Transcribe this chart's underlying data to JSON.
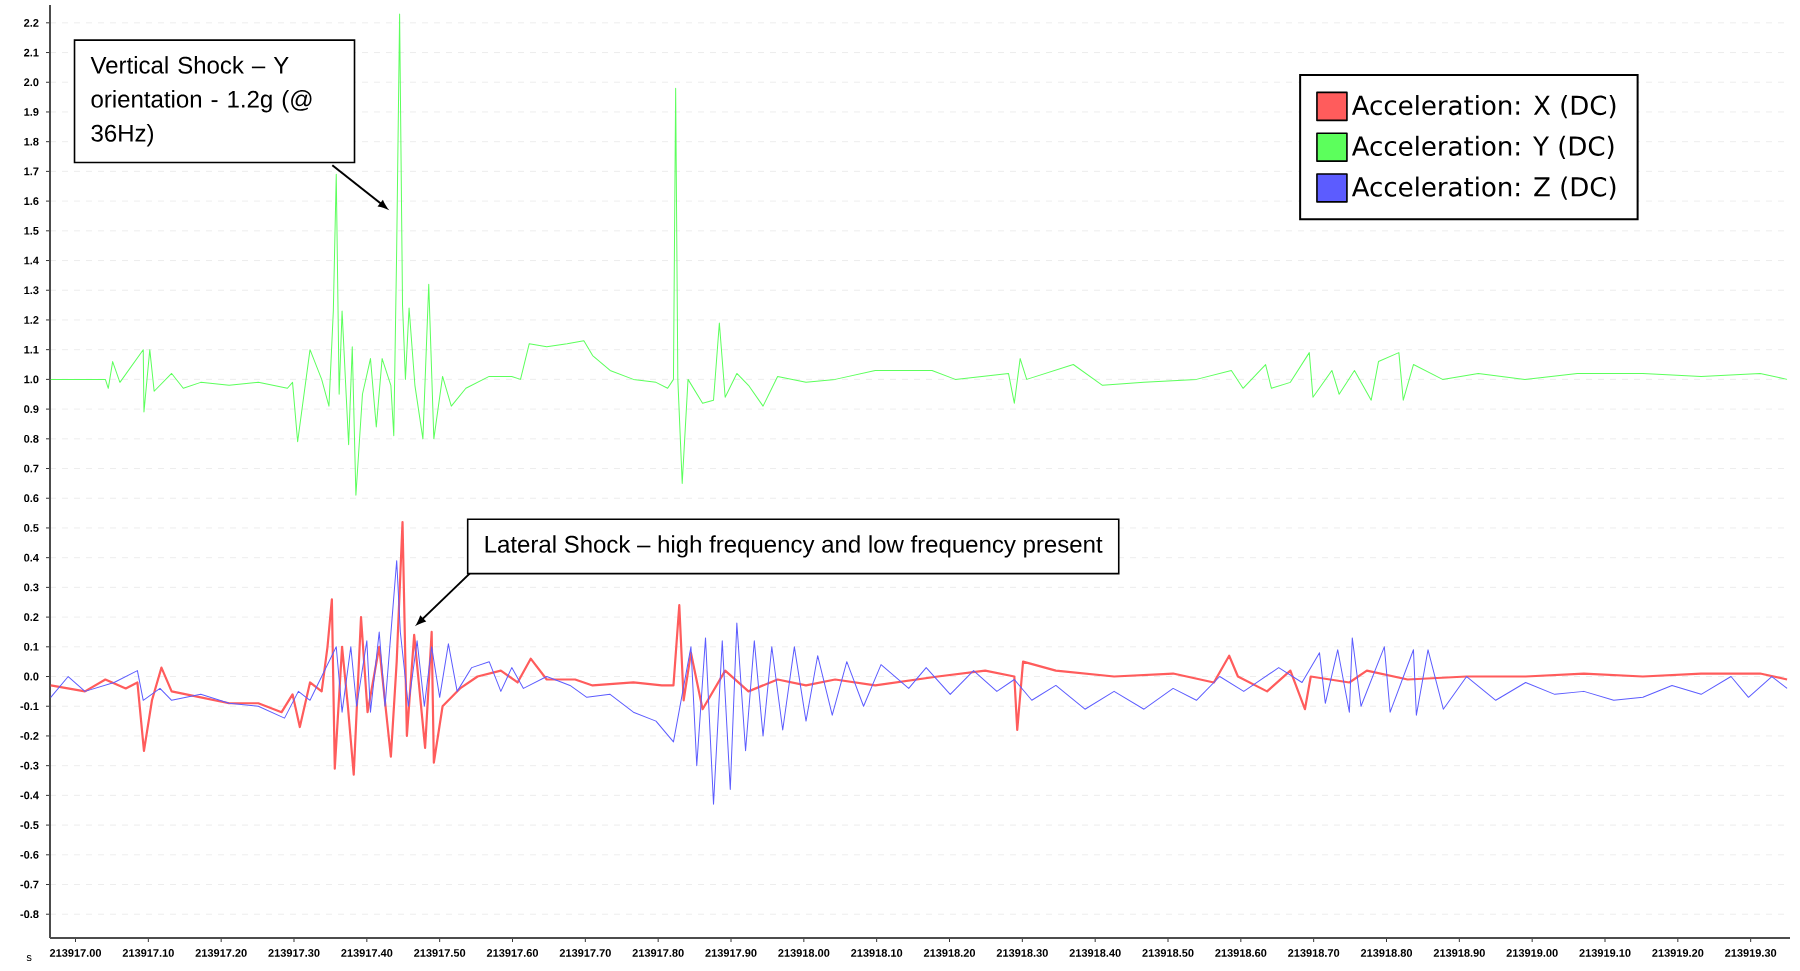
{
  "chart_data": {
    "type": "line",
    "xlabel": "s",
    "annotations": [
      "Vertical Shock – Y orientation - 1.2g (@ 36Hz)",
      "Lateral Shock – high frequency and low frequency present"
    ],
    "series": [
      {
        "name": "Acceleration: X (DC)",
        "color": "#ff5c5c",
        "x": [
          213916.966,
          213917.013,
          213917.041,
          213917.069,
          213917.085,
          213917.094,
          213917.105,
          213917.118,
          213917.132,
          213917.172,
          213917.211,
          213917.251,
          213917.283,
          213917.298,
          213917.308,
          213917.322,
          213917.338,
          213917.346,
          213917.352,
          213917.356,
          213917.366,
          213917.374,
          213917.382,
          213917.392,
          213917.401,
          213917.417,
          213917.433,
          213917.441,
          213917.449,
          213917.455,
          213917.465,
          213917.48,
          213917.489,
          213917.492,
          213917.504,
          213917.528,
          213917.552,
          213917.584,
          213917.607,
          213917.625,
          213917.647,
          213917.686,
          213917.71,
          213917.766,
          213917.805,
          213917.821,
          213917.829,
          213917.835,
          213917.845,
          213917.861,
          213917.892,
          213917.924,
          213917.964,
          213918.003,
          213918.043,
          213918.098,
          213918.184,
          213918.249,
          213918.289,
          213918.293,
          213918.301,
          213918.346,
          213918.426,
          213918.507,
          213918.563,
          213918.584,
          213918.596,
          213918.636,
          213918.668,
          213918.688,
          213918.696,
          213918.749,
          213918.773,
          213918.829,
          213918.91,
          213918.991,
          213919.071,
          213919.152,
          213919.232,
          213919.313,
          213919.35
        ],
        "values": [
          -0.03,
          -0.05,
          -0.01,
          -0.04,
          -0.02,
          -0.25,
          -0.08,
          0.03,
          -0.05,
          -0.07,
          -0.09,
          -0.09,
          -0.12,
          -0.06,
          -0.17,
          -0.02,
          -0.05,
          0.1,
          0.26,
          -0.31,
          0.1,
          -0.1,
          -0.33,
          0.2,
          -0.12,
          0.1,
          -0.27,
          0.05,
          0.52,
          -0.2,
          0.14,
          -0.24,
          0.15,
          -0.29,
          -0.1,
          -0.04,
          0.0,
          0.02,
          -0.02,
          0.06,
          -0.01,
          -0.01,
          -0.03,
          -0.02,
          -0.03,
          -0.03,
          0.24,
          -0.08,
          0.08,
          -0.11,
          0.02,
          -0.05,
          -0.01,
          -0.03,
          -0.01,
          -0.03,
          0.0,
          0.02,
          0.0,
          -0.18,
          0.05,
          0.02,
          0.0,
          0.01,
          -0.02,
          0.07,
          0.0,
          -0.05,
          0.02,
          -0.11,
          0.0,
          -0.02,
          0.02,
          -0.01,
          0.0,
          0.0,
          0.01,
          0.0,
          0.01,
          0.01,
          -0.01
        ]
      },
      {
        "name": "Acceleration: Y (DC)",
        "color": "#5cff5c",
        "x": [
          213916.966,
          213917.041,
          213917.045,
          213917.051,
          213917.061,
          213917.093,
          213917.094,
          213917.102,
          213917.108,
          213917.132,
          213917.148,
          213917.172,
          213917.211,
          213917.251,
          213917.291,
          213917.298,
          213917.305,
          213917.322,
          213917.338,
          213917.348,
          213917.354,
          213917.358,
          213917.362,
          213917.366,
          213917.375,
          213917.38,
          213917.385,
          213917.394,
          213917.405,
          213917.413,
          213917.421,
          213917.433,
          213917.437,
          213917.441,
          213917.445,
          213917.449,
          213917.453,
          213917.458,
          213917.466,
          213917.477,
          213917.485,
          213917.492,
          213917.504,
          213917.516,
          213917.536,
          213917.568,
          213917.599,
          213917.611,
          213917.623,
          213917.647,
          213917.675,
          213917.698,
          213917.71,
          213917.734,
          213917.766,
          213917.797,
          213917.813,
          213917.821,
          213917.824,
          213917.827,
          213917.833,
          213917.841,
          213917.861,
          213917.876,
          213917.884,
          213917.892,
          213917.908,
          213917.924,
          213917.944,
          213917.964,
          213918.003,
          213918.043,
          213918.098,
          213918.176,
          213918.208,
          213918.281,
          213918.289,
          213918.297,
          213918.306,
          213918.37,
          213918.41,
          213918.467,
          213918.539,
          213918.587,
          213918.603,
          213918.634,
          213918.642,
          213918.668,
          213918.694,
          213918.699,
          213918.725,
          213918.735,
          213918.756,
          213918.779,
          213918.789,
          213918.817,
          213918.823,
          213918.837,
          213918.877,
          213918.926,
          213918.99,
          213919.062,
          213919.119,
          213919.152,
          213919.232,
          213919.313,
          213919.35
        ],
        "values": [
          1.0,
          1.0,
          0.97,
          1.06,
          0.99,
          1.1,
          0.89,
          1.1,
          0.96,
          1.02,
          0.97,
          0.99,
          0.98,
          0.99,
          0.97,
          0.99,
          0.79,
          1.1,
          1.0,
          0.91,
          1.23,
          1.69,
          0.95,
          1.23,
          0.78,
          1.11,
          0.61,
          0.95,
          1.07,
          0.84,
          1.07,
          0.98,
          0.81,
          1.44,
          2.23,
          1.25,
          1.0,
          1.24,
          0.98,
          0.8,
          1.32,
          0.8,
          1.01,
          0.91,
          0.97,
          1.01,
          1.01,
          1.0,
          1.12,
          1.11,
          1.12,
          1.13,
          1.08,
          1.03,
          1.0,
          0.99,
          0.97,
          1.0,
          1.98,
          1.0,
          0.65,
          1.0,
          0.92,
          0.93,
          1.19,
          0.94,
          1.02,
          0.98,
          0.91,
          1.01,
          0.99,
          1.0,
          1.03,
          1.03,
          1.0,
          1.02,
          0.92,
          1.07,
          1.0,
          1.05,
          0.98,
          0.99,
          1.0,
          1.03,
          0.97,
          1.05,
          0.97,
          0.99,
          1.09,
          0.94,
          1.03,
          0.95,
          1.03,
          0.93,
          1.06,
          1.09,
          0.93,
          1.05,
          1.0,
          1.02,
          1.0,
          1.02,
          1.02,
          1.02,
          1.01,
          1.02,
          1.0
        ]
      },
      {
        "name": "Acceleration: Z (DC)",
        "color": "#5c5cff",
        "x": [
          213916.966,
          213916.99,
          213917.013,
          213917.053,
          213917.085,
          213917.093,
          213917.116,
          213917.132,
          213917.172,
          213917.211,
          213917.251,
          213917.287,
          213917.306,
          213917.322,
          213917.338,
          213917.358,
          213917.366,
          213917.378,
          213917.386,
          213917.4,
          213917.405,
          213917.417,
          213917.425,
          213917.441,
          213917.446,
          213917.457,
          213917.469,
          213917.479,
          213917.489,
          213917.5,
          213917.512,
          213917.524,
          213917.544,
          213917.568,
          213917.584,
          213917.599,
          213917.615,
          213917.647,
          213917.679,
          213917.702,
          213917.734,
          213917.766,
          213917.797,
          213917.821,
          213917.845,
          213917.853,
          213917.865,
          213917.876,
          213917.888,
          213917.899,
          213917.908,
          213917.92,
          213917.932,
          213917.944,
          213917.956,
          213917.971,
          213917.987,
          213918.003,
          213918.019,
          213918.039,
          213918.059,
          213918.082,
          213918.106,
          213918.144,
          213918.168,
          213918.201,
          213918.233,
          213918.265,
          213918.289,
          213918.313,
          213918.346,
          213918.386,
          213918.426,
          213918.467,
          213918.507,
          213918.539,
          213918.571,
          213918.604,
          213918.652,
          213918.684,
          213918.708,
          213918.716,
          213918.733,
          213918.749,
          213918.753,
          213918.765,
          213918.797,
          213918.805,
          213918.837,
          213918.841,
          213918.857,
          213918.878,
          213918.91,
          213918.95,
          213918.991,
          213919.031,
          213919.071,
          213919.112,
          213919.152,
          213919.192,
          213919.232,
          213919.273,
          213919.297,
          213919.329,
          213919.35
        ],
        "values": [
          -0.07,
          0.0,
          -0.05,
          -0.02,
          0.02,
          -0.08,
          -0.04,
          -0.08,
          -0.06,
          -0.09,
          -0.1,
          -0.14,
          -0.05,
          -0.08,
          0.0,
          0.1,
          -0.12,
          0.1,
          -0.1,
          0.12,
          -0.12,
          0.15,
          -0.1,
          0.39,
          0.15,
          -0.1,
          0.12,
          -0.1,
          0.1,
          -0.07,
          0.11,
          -0.05,
          0.03,
          0.05,
          -0.05,
          0.03,
          -0.04,
          0.0,
          -0.03,
          -0.07,
          -0.06,
          -0.12,
          -0.15,
          -0.22,
          0.1,
          -0.3,
          0.13,
          -0.43,
          0.12,
          -0.38,
          0.18,
          -0.25,
          0.12,
          -0.2,
          0.1,
          -0.18,
          0.1,
          -0.15,
          0.07,
          -0.13,
          0.05,
          -0.1,
          0.04,
          -0.04,
          0.03,
          -0.06,
          0.02,
          -0.05,
          -0.01,
          -0.08,
          -0.03,
          -0.11,
          -0.05,
          -0.11,
          -0.04,
          -0.08,
          0.0,
          -0.05,
          0.03,
          -0.02,
          0.08,
          -0.09,
          0.09,
          -0.12,
          0.13,
          -0.1,
          0.1,
          -0.12,
          0.09,
          -0.13,
          0.09,
          -0.11,
          0.0,
          -0.08,
          -0.02,
          -0.06,
          -0.05,
          -0.08,
          -0.07,
          -0.03,
          -0.06,
          0.0,
          -0.07,
          0.0,
          -0.04
        ]
      }
    ],
    "xlim": [
      213916.965,
      213919.354
    ],
    "ylim": [
      -0.88,
      2.26
    ],
    "xticks": [
      {
        "value": 213917.0,
        "label": "213917.00"
      },
      {
        "value": 213917.1,
        "label": "213917.10"
      },
      {
        "value": 213917.2,
        "label": "213917.20"
      },
      {
        "value": 213917.3,
        "label": "213917.30"
      },
      {
        "value": 213917.4,
        "label": "213917.40"
      },
      {
        "value": 213917.5,
        "label": "213917.50"
      },
      {
        "value": 213917.6,
        "label": "213917.60"
      },
      {
        "value": 213917.7,
        "label": "213917.70"
      },
      {
        "value": 213917.8,
        "label": "213917.80"
      },
      {
        "value": 213917.9,
        "label": "213917.90"
      },
      {
        "value": 213918.0,
        "label": "213918.00"
      },
      {
        "value": 213918.1,
        "label": "213918.10"
      },
      {
        "value": 213918.2,
        "label": "213918.20"
      },
      {
        "value": 213918.3,
        "label": "213918.30"
      },
      {
        "value": 213918.4,
        "label": "213918.40"
      },
      {
        "value": 213918.5,
        "label": "213918.50"
      },
      {
        "value": 213918.6,
        "label": "213918.60"
      },
      {
        "value": 213918.7,
        "label": "213918.70"
      },
      {
        "value": 213918.8,
        "label": "213918.80"
      },
      {
        "value": 213918.9,
        "label": "213918.90"
      },
      {
        "value": 213919.0,
        "label": "213919.00"
      },
      {
        "value": 213919.1,
        "label": "213919.10"
      },
      {
        "value": 213919.2,
        "label": "213919.20"
      },
      {
        "value": 213919.3,
        "label": "213919.30"
      }
    ],
    "yticks": [
      {
        "value": -0.8,
        "label": "-0.8"
      },
      {
        "value": -0.7,
        "label": "-0.7"
      },
      {
        "value": -0.6,
        "label": "-0.6"
      },
      {
        "value": -0.5,
        "label": "-0.5"
      },
      {
        "value": -0.4,
        "label": "-0.4"
      },
      {
        "value": -0.3,
        "label": "-0.3"
      },
      {
        "value": -0.2,
        "label": "-0.2"
      },
      {
        "value": -0.1,
        "label": "-0.1"
      },
      {
        "value": 0.0,
        "label": "0.0"
      },
      {
        "value": 0.1,
        "label": "0.1"
      },
      {
        "value": 0.2,
        "label": "0.2"
      },
      {
        "value": 0.3,
        "label": "0.3"
      },
      {
        "value": 0.4,
        "label": "0.4"
      },
      {
        "value": 0.5,
        "label": "0.5"
      },
      {
        "value": 0.6,
        "label": "0.6"
      },
      {
        "value": 0.7,
        "label": "0.7"
      },
      {
        "value": 0.8,
        "label": "0.8"
      },
      {
        "value": 0.9,
        "label": "0.9"
      },
      {
        "value": 1.0,
        "label": "1.0"
      },
      {
        "value": 1.1,
        "label": "1.1"
      },
      {
        "value": 1.2,
        "label": "1.2"
      },
      {
        "value": 1.3,
        "label": "1.3"
      },
      {
        "value": 1.4,
        "label": "1.4"
      },
      {
        "value": 1.5,
        "label": "1.5"
      },
      {
        "value": 1.6,
        "label": "1.6"
      },
      {
        "value": 1.7,
        "label": "1.7"
      },
      {
        "value": 1.8,
        "label": "1.8"
      },
      {
        "value": 1.9,
        "label": "1.9"
      },
      {
        "value": 2.0,
        "label": "2.0"
      },
      {
        "value": 2.1,
        "label": "2.1"
      },
      {
        "value": 2.2,
        "label": "2.2"
      }
    ],
    "grid": "y",
    "legend": "top right",
    "marker": "none",
    "line_style": "solid"
  }
}
